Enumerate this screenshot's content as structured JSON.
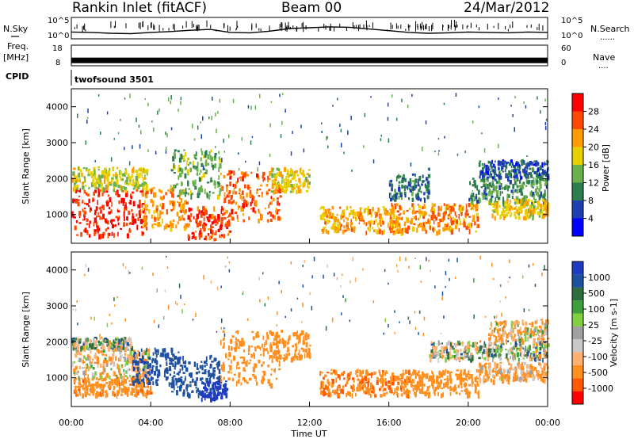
{
  "header": {
    "station": "Rankin Inlet (fitACF)",
    "beam": "Beam 00",
    "date": "24/Mar/2012"
  },
  "nsky_panel": {
    "left_label": "N.Sky",
    "right_label": "N.Search",
    "right_label_marker": "......",
    "left_ticks": [
      "10^5",
      "10^0"
    ],
    "right_ticks": [
      "10^5",
      "10^0"
    ]
  },
  "freq_panel": {
    "left_label_line1": "Freq.",
    "left_label_line2": "[MHz]",
    "right_label": "Nave",
    "right_label_marker": "....",
    "left_ticks": [
      "18",
      "8"
    ],
    "right_ticks": [
      "60",
      "0"
    ]
  },
  "cpid": {
    "label": "CPID",
    "program": "twofsound 3501"
  },
  "colors": {
    "frame": "#000000",
    "power_scale": [
      "#0000ff",
      "#1e3fb0",
      "#2e7d4f",
      "#6ab04c",
      "#e8d000",
      "#ff9a00",
      "#ff4a00",
      "#ff0000"
    ],
    "velocity_scale": [
      "#ff0000",
      "#ff5a00",
      "#ff9020",
      "#ffb070",
      "#c8c8c8",
      "#a0a0a0",
      "#80d040",
      "#40a040",
      "#2e6e3e",
      "#1e50a0",
      "#1e3cc0"
    ]
  },
  "chart_data": [
    {
      "type": "heatmap",
      "name": "power",
      "ylabel": "Slant Range [km]",
      "yticks": [
        "1000",
        "2000",
        "3000",
        "4000"
      ],
      "ylim": [
        200,
        4500
      ],
      "xlim": [
        0,
        24
      ],
      "colorbar_label": "Power [dB]",
      "colorbar_ticks": [
        "4",
        "8",
        "12",
        "16",
        "20",
        "24",
        "28"
      ],
      "colorbar_range": [
        0,
        32
      ],
      "bands": [
        {
          "t": [
            0.0,
            3.8
          ],
          "r": [
            400,
            1700
          ],
          "v": 29
        },
        {
          "t": [
            0.0,
            3.8
          ],
          "r": [
            1700,
            2300
          ],
          "v": 17
        },
        {
          "t": [
            3.5,
            5.8
          ],
          "r": [
            600,
            1800
          ],
          "v": 22
        },
        {
          "t": [
            5.0,
            7.5
          ],
          "r": [
            1500,
            2800
          ],
          "v": 13
        },
        {
          "t": [
            5.8,
            8.0
          ],
          "r": [
            300,
            1200
          ],
          "v": 27
        },
        {
          "t": [
            7.5,
            10.5
          ],
          "r": [
            800,
            2200
          ],
          "v": 25
        },
        {
          "t": [
            10.0,
            12.0
          ],
          "r": [
            1600,
            2300
          ],
          "v": 18
        },
        {
          "t": [
            12.5,
            16.5
          ],
          "r": [
            500,
            1200
          ],
          "v": 21
        },
        {
          "t": [
            16.0,
            20.5
          ],
          "r": [
            500,
            1300
          ],
          "v": 23
        },
        {
          "t": [
            16.0,
            18.0
          ],
          "r": [
            1400,
            2100
          ],
          "v": 9
        },
        {
          "t": [
            20.0,
            24.0
          ],
          "r": [
            1300,
            2000
          ],
          "v": 11
        },
        {
          "t": [
            21.0,
            24.0
          ],
          "r": [
            900,
            1400
          ],
          "v": 19
        },
        {
          "t": [
            20.5,
            24.0
          ],
          "r": [
            2000,
            2500
          ],
          "v": 7
        }
      ]
    },
    {
      "type": "heatmap",
      "name": "velocity",
      "ylabel": "Slant Range [km]",
      "yticks": [
        "1000",
        "2000",
        "3000",
        "4000"
      ],
      "ylim": [
        200,
        4500
      ],
      "xlim": [
        0,
        24
      ],
      "xlabel": "Time UT",
      "xticks": [
        "00:00",
        "04:00",
        "08:00",
        "12:00",
        "16:00",
        "20:00",
        "00:00"
      ],
      "colorbar_label": "Velocity [m s-1]",
      "colorbar_ticks": [
        "1000",
        "500",
        "100",
        "25",
        "-25",
        "-100",
        "-500",
        "-1000"
      ],
      "bands": [
        {
          "t": [
            0.0,
            4.0
          ],
          "r": [
            500,
            1000
          ],
          "v": -400
        },
        {
          "t": [
            0.0,
            4.0
          ],
          "r": [
            1000,
            1800
          ],
          "v": -80
        },
        {
          "t": [
            0.0,
            3.0
          ],
          "r": [
            1800,
            2100
          ],
          "v": 10
        },
        {
          "t": [
            3.0,
            5.5
          ],
          "r": [
            800,
            1800
          ],
          "v": 400
        },
        {
          "t": [
            5.0,
            7.5
          ],
          "r": [
            500,
            1600
          ],
          "v": 300
        },
        {
          "t": [
            6.5,
            7.8
          ],
          "r": [
            400,
            900
          ],
          "v": 900
        },
        {
          "t": [
            7.5,
            10.5
          ],
          "r": [
            800,
            2300
          ],
          "v": -350
        },
        {
          "t": [
            10.0,
            12.0
          ],
          "r": [
            1500,
            2300
          ],
          "v": -250
        },
        {
          "t": [
            12.5,
            17.0
          ],
          "r": [
            500,
            1200
          ],
          "v": -450
        },
        {
          "t": [
            16.5,
            20.5
          ],
          "r": [
            500,
            1200
          ],
          "v": -300
        },
        {
          "t": [
            18.0,
            24.0
          ],
          "r": [
            1500,
            2000
          ],
          "v": 0
        },
        {
          "t": [
            20.5,
            24.0
          ],
          "r": [
            900,
            1400
          ],
          "v": -120
        },
        {
          "t": [
            21.0,
            24.0
          ],
          "r": [
            2000,
            2600
          ],
          "v": -80
        }
      ]
    },
    {
      "type": "line",
      "name": "nsky",
      "x": [
        0,
        1,
        2,
        3,
        4,
        5,
        6,
        7,
        8,
        9,
        10,
        11,
        12,
        13,
        14,
        15,
        16,
        17,
        18,
        19,
        20,
        21,
        22,
        23,
        24
      ],
      "values": [
        1.6,
        1.5,
        1.3,
        1.2,
        1.5,
        1.7,
        2.0,
        2.2,
        1.5,
        1.4,
        1.8,
        2.4,
        2.6,
        2.8,
        2.7,
        2.3,
        1.9,
        1.5,
        1.3,
        1.4,
        1.6,
        1.5,
        1.4,
        1.6,
        1.5
      ],
      "ylim": [
        0,
        5
      ]
    },
    {
      "type": "bar",
      "name": "frequency",
      "x": [
        0,
        24
      ],
      "values": [
        10.8,
        10.8
      ],
      "ylim": [
        8,
        18
      ]
    }
  ]
}
